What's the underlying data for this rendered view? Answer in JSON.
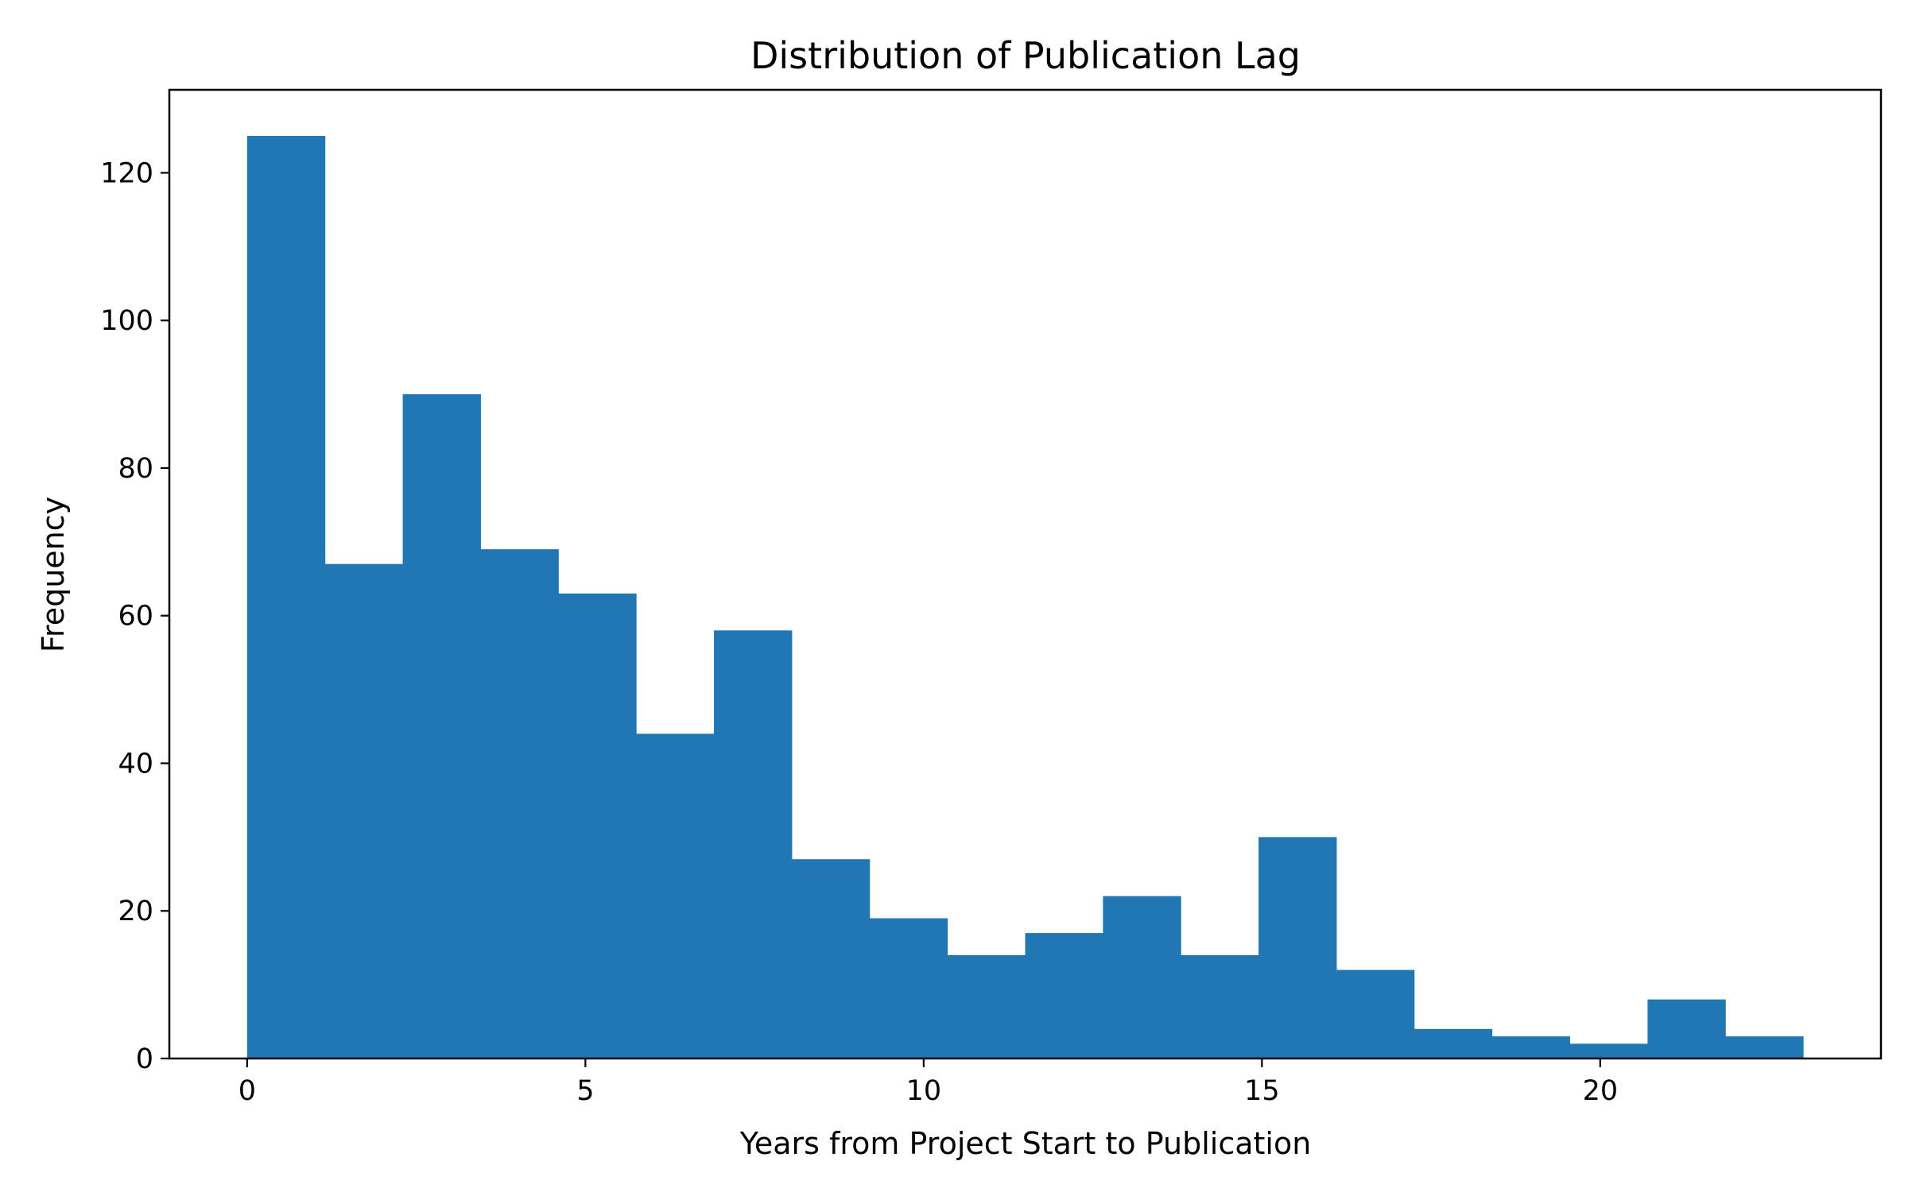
{
  "chart_data": {
    "type": "bar",
    "subtype": "histogram",
    "title": "Distribution of Publication Lag",
    "xlabel": "Years from Project Start to Publication",
    "ylabel": "Frequency",
    "bins": [
      {
        "x0": 0.0,
        "x1": 1.15,
        "count": 125
      },
      {
        "x0": 1.15,
        "x1": 2.3,
        "count": 67
      },
      {
        "x0": 2.3,
        "x1": 3.45,
        "count": 90
      },
      {
        "x0": 3.45,
        "x1": 4.6,
        "count": 69
      },
      {
        "x0": 4.6,
        "x1": 5.75,
        "count": 63
      },
      {
        "x0": 5.75,
        "x1": 6.9,
        "count": 44
      },
      {
        "x0": 6.9,
        "x1": 8.05,
        "count": 58
      },
      {
        "x0": 8.05,
        "x1": 9.2,
        "count": 27
      },
      {
        "x0": 9.2,
        "x1": 10.35,
        "count": 19
      },
      {
        "x0": 10.35,
        "x1": 11.5,
        "count": 14
      },
      {
        "x0": 11.5,
        "x1": 12.65,
        "count": 17
      },
      {
        "x0": 12.65,
        "x1": 13.8,
        "count": 22
      },
      {
        "x0": 13.8,
        "x1": 14.95,
        "count": 14
      },
      {
        "x0": 14.95,
        "x1": 16.1,
        "count": 30
      },
      {
        "x0": 16.1,
        "x1": 17.25,
        "count": 12
      },
      {
        "x0": 17.25,
        "x1": 18.4,
        "count": 4
      },
      {
        "x0": 18.4,
        "x1": 19.55,
        "count": 3
      },
      {
        "x0": 19.55,
        "x1": 20.7,
        "count": 2
      },
      {
        "x0": 20.7,
        "x1": 21.85,
        "count": 8
      },
      {
        "x0": 21.85,
        "x1": 23.0,
        "count": 3
      }
    ],
    "xlim": [
      -1.15,
      24.15
    ],
    "ylim": [
      0,
      131.25
    ],
    "xticks": [
      0,
      5,
      10,
      15,
      20
    ],
    "yticks": [
      0,
      20,
      40,
      60,
      80,
      100,
      120
    ],
    "bar_color": "#2077b4",
    "grid": false,
    "legend": "none"
  }
}
